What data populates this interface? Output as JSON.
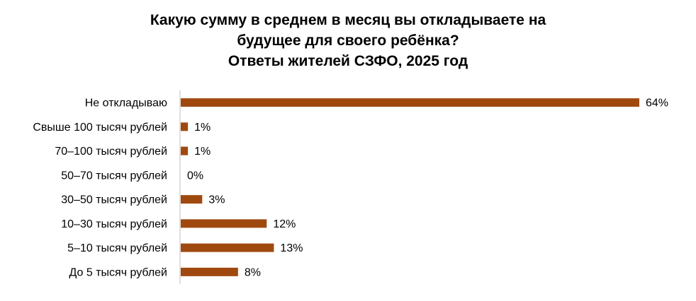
{
  "chart_data": {
    "type": "bar",
    "orientation": "horizontal",
    "title_lines": [
      "Какую сумму в среднем в месяц вы откладываете на",
      "будущее для своего ребёнка?",
      "Ответы жителей СЗФО, 2025 год"
    ],
    "categories": [
      "Не откладываю",
      "Свыше 100 тысяч рублей",
      "70–100 тысяч рублей",
      "50–70 тысяч рублей",
      "30–50 тысяч рублей",
      "10–30 тысяч рублей",
      "5–10 тысяч рублей",
      "До 5 тысяч рублей"
    ],
    "values": [
      64,
      1,
      1,
      0,
      3,
      12,
      13,
      8
    ],
    "value_labels": [
      "64%",
      "1%",
      "1%",
      "0%",
      "3%",
      "12%",
      "13%",
      "8%"
    ],
    "xlabel": "",
    "ylabel": "",
    "xlim": [
      0,
      64
    ],
    "grid": false,
    "legend": "none",
    "bar_color": "#A0490F",
    "axis_color": "#BFBFBF"
  }
}
